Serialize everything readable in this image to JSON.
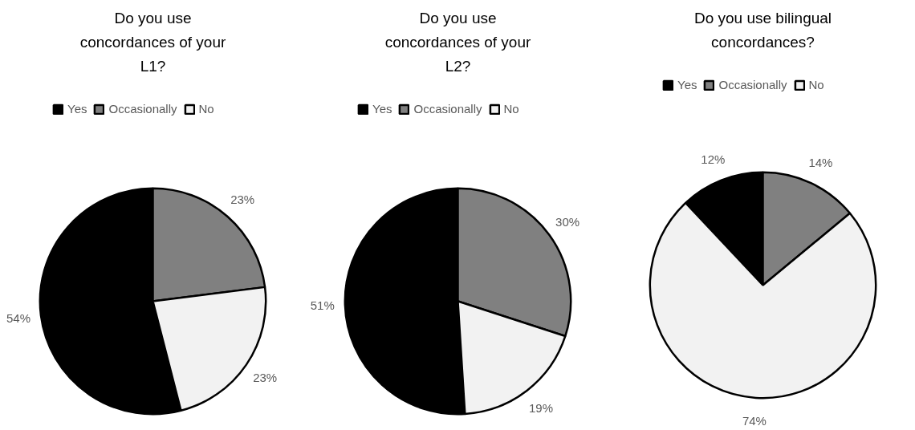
{
  "chart_data": [
    {
      "type": "pie",
      "title": "Do you use concordances of your L1?",
      "categories": [
        "Yes",
        "Occasionally",
        "No"
      ],
      "values": [
        54,
        23,
        23
      ],
      "colors": [
        "#000000",
        "#808080",
        "#f2f2f2"
      ],
      "value_labels": [
        "54%",
        "23%",
        "23%"
      ],
      "legend": "top"
    },
    {
      "type": "pie",
      "title": "Do you use concordances of your L2?",
      "categories": [
        "Yes",
        "Occasionally",
        "No"
      ],
      "values": [
        51,
        30,
        19
      ],
      "colors": [
        "#000000",
        "#808080",
        "#f2f2f2"
      ],
      "value_labels": [
        "51%",
        "30%",
        "19%"
      ],
      "legend": "top"
    },
    {
      "type": "pie",
      "title": "Do you use bilingual concordances?",
      "categories": [
        "Yes",
        "Occasionally",
        "No"
      ],
      "values": [
        12,
        14,
        74
      ],
      "colors": [
        "#000000",
        "#808080",
        "#f2f2f2"
      ],
      "value_labels": [
        "12%",
        "14%",
        "74%"
      ],
      "legend": "top"
    }
  ]
}
